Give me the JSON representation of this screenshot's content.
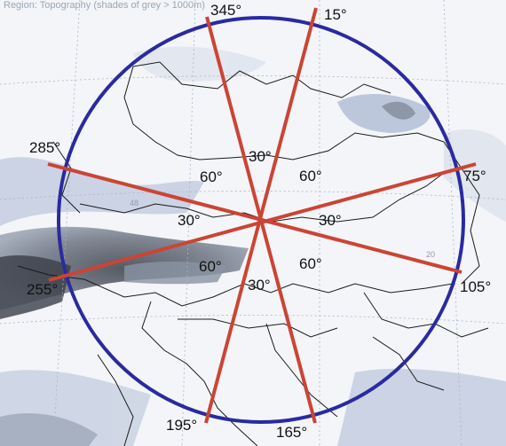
{
  "map": {
    "header": "Region: Topography (shades of grey > 1000m)",
    "colors": {
      "circle": "#2a2aa0",
      "lines": "#cc4433",
      "text": "#111111",
      "terrain": "#aab6cf",
      "alps": "#555c68",
      "borders": "#1a1a1a",
      "grid": "#aab4c8"
    },
    "direction_labels": [
      {
        "text": "345°"
      },
      {
        "text": "15°"
      },
      {
        "text": "285°"
      },
      {
        "text": "75°"
      },
      {
        "text": "255°"
      },
      {
        "text": "105°"
      },
      {
        "text": "195°"
      },
      {
        "text": "165°"
      }
    ],
    "angle_labels": [
      {
        "text": "30°"
      },
      {
        "text": "60°"
      },
      {
        "text": "60°"
      },
      {
        "text": "30°"
      },
      {
        "text": "30°"
      },
      {
        "text": "60°"
      },
      {
        "text": "60°"
      },
      {
        "text": "30°"
      }
    ],
    "grid_labels": [
      {
        "text": "48"
      },
      {
        "text": "20"
      }
    ]
  }
}
